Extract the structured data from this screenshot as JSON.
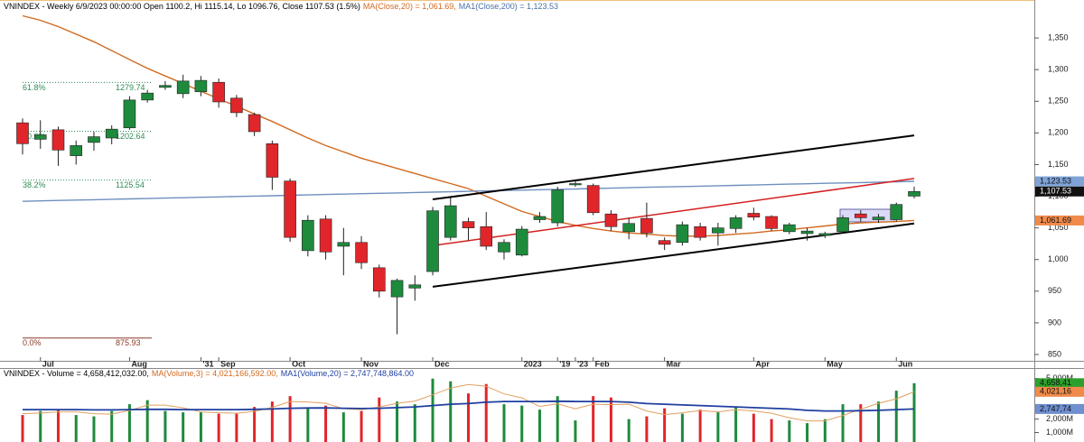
{
  "chart_data": [
    {
      "type": "candlestick",
      "legend": [
        {
          "text": "VNINDEX - Weekly 6/9/2023 00:00:00 Open 1100.2, Hi 1115.14, Lo 1096.76, Close 1107.53 (1.5%)",
          "color": "#000000"
        },
        {
          "text": "MA(Close,20) = 1,061.69,",
          "color": "#d2691e"
        },
        {
          "text": "MA1(Close,200) = 1,123.53",
          "color": "#4a6fa5"
        }
      ],
      "categories": [
        null,
        "Jul",
        null,
        null,
        null,
        null,
        "Aug",
        null,
        null,
        null,
        "'31",
        "Sep",
        null,
        null,
        null,
        "Oct",
        null,
        null,
        null,
        "Nov",
        null,
        null,
        null,
        "Dec",
        null,
        null,
        null,
        null,
        "2023",
        null,
        "'19",
        "'23",
        "Feb",
        null,
        null,
        null,
        "Mar",
        null,
        null,
        null,
        null,
        "Apr",
        null,
        null,
        null,
        "May",
        null,
        null,
        null,
        "Jun",
        null
      ],
      "open": [
        1216,
        1190,
        1205,
        1164,
        1185,
        1192,
        1208,
        1252,
        1272,
        1262,
        1265,
        1280,
        1255,
        1229,
        1183,
        1124,
        1014,
        1064,
        1021,
        1027,
        987,
        941,
        955,
        981,
        1035,
        1060,
        1052,
        1012,
        1007,
        1063,
        1058,
        1118,
        1117,
        1072,
        1044,
        1065,
        1030,
        1027,
        1052,
        1042,
        1049,
        1073,
        1068,
        1044,
        1041,
        1038,
        1044,
        1072,
        1063,
        1063,
        1100.2
      ],
      "high": [
        1223,
        1220,
        1210,
        1188,
        1202,
        1212,
        1258,
        1268,
        1282,
        1292,
        1290,
        1286,
        1260,
        1232,
        1188,
        1128,
        1070,
        1070,
        1050,
        1037,
        992,
        970,
        975,
        1083,
        1098,
        1066,
        1075,
        1032,
        1053,
        1075,
        1115,
        1125,
        1120,
        1078,
        1066,
        1090,
        1035,
        1060,
        1058,
        1058,
        1070,
        1082,
        1070,
        1058,
        1050,
        1044,
        1070,
        1078,
        1072,
        1090,
        1115.14
      ],
      "low": [
        1166,
        1175,
        1148,
        1150,
        1172,
        1182,
        1205,
        1248,
        1268,
        1255,
        1258,
        1240,
        1225,
        1195,
        1110,
        1028,
        1005,
        1000,
        975,
        985,
        940,
        882,
        935,
        975,
        1030,
        1030,
        1015,
        1000,
        1005,
        1058,
        1052,
        1115,
        1070,
        1045,
        1032,
        1035,
        1015,
        1022,
        1030,
        1022,
        1042,
        1062,
        1045,
        1040,
        1030,
        1034,
        1042,
        1060,
        1058,
        1060,
        1096.76
      ],
      "close": [
        1183,
        1197,
        1173,
        1180,
        1194,
        1206,
        1252,
        1263,
        1275,
        1282,
        1283,
        1249,
        1232,
        1202,
        1130,
        1035,
        1062,
        1012,
        1027,
        995,
        950,
        967,
        960,
        1077,
        1085,
        1050,
        1021,
        1027,
        1048,
        1068,
        1110,
        1120,
        1074,
        1052,
        1057,
        1042,
        1024,
        1055,
        1035,
        1050,
        1066,
        1067,
        1049,
        1055,
        1045,
        1041,
        1066,
        1066,
        1067,
        1087,
        1107.53
      ],
      "up_color": "#1e8a3c",
      "down_color": "#e0262a",
      "series": [
        {
          "color": "#d2691e",
          "values": [
            1385,
            1378,
            1368,
            1356,
            1344,
            1330,
            1316,
            1302,
            1290,
            1278,
            1266,
            1254,
            1242,
            1230,
            1218,
            1205,
            1192,
            1180,
            1170,
            1160,
            1152,
            1144,
            1136,
            1128,
            1120,
            1112,
            1100,
            1088,
            1076,
            1068,
            1060,
            1054,
            1049,
            1045,
            1042,
            1040,
            1038,
            1037,
            1037,
            1038,
            1040,
            1042,
            1045,
            1047,
            1050,
            1053,
            1056,
            1058,
            1059,
            1060,
            1061.69
          ]
        },
        {
          "color": "#6f8fbf",
          "values": [
            1092,
            1092.6,
            1093.3,
            1093.9,
            1094.5,
            1095.2,
            1095.8,
            1096.4,
            1097.0,
            1097.7,
            1098.3,
            1098.9,
            1099.6,
            1100.2,
            1100.8,
            1101.5,
            1102.1,
            1102.7,
            1103.3,
            1104.0,
            1104.6,
            1105.2,
            1105.9,
            1106.5,
            1107.1,
            1107.8,
            1108.4,
            1109.0,
            1109.6,
            1110.3,
            1110.9,
            1111.5,
            1112.2,
            1112.8,
            1113.4,
            1114.1,
            1114.7,
            1115.3,
            1115.9,
            1116.6,
            1117.2,
            1117.8,
            1118.5,
            1119.1,
            1119.7,
            1120.4,
            1121.0,
            1121.6,
            1122.2,
            1122.9,
            1123.53
          ]
        }
      ],
      "trendlines": [
        {
          "color": "#000000",
          "x": [
            23,
            50
          ],
          "values": [
            1095,
            1196
          ]
        },
        {
          "color": "#000000",
          "x": [
            23,
            50
          ],
          "values": [
            957,
            1057
          ]
        },
        {
          "color": "#d42020",
          "x": [
            23,
            50
          ],
          "values": [
            1022,
            1128
          ]
        }
      ],
      "fib_levels": [
        {
          "label": "61.8%",
          "value": 1279.74,
          "value_label": "1279.74",
          "color": "#2e8b57"
        },
        {
          "label": "50.0%",
          "value": 1202.64,
          "value_label": "1202.64",
          "color": "#2e8b57"
        },
        {
          "label": "38.2%",
          "value": 1125.54,
          "value_label": "1125.54",
          "color": "#2e8b57"
        },
        {
          "label": "0.0%",
          "value": 875.93,
          "value_label": "875.93",
          "color": "#8b3a2a"
        }
      ],
      "price_tags": [
        {
          "label": "1,123.53",
          "value": 1123.53,
          "color": "#7fa3d6"
        },
        {
          "label": "1,107.53",
          "value": 1107.53,
          "color": "#111111"
        },
        {
          "label": "1,061.69",
          "value": 1061.69,
          "color": "#f08a4b"
        }
      ],
      "ylim": [
        840,
        1410
      ],
      "yticks": [
        850,
        900,
        950,
        {
          "value": 1000,
          "label": "1,000"
        },
        {
          "value": 1050,
          "label": "1,050"
        },
        {
          "value": 1100,
          "label": "1,100"
        },
        {
          "value": 1150,
          "label": "1,150"
        },
        {
          "value": 1200,
          "label": "1,200"
        },
        {
          "value": 1250,
          "label": "1,250"
        },
        {
          "value": 1300,
          "label": "1,300"
        },
        {
          "value": 1350,
          "label": "1,350"
        }
      ]
    },
    {
      "type": "bar",
      "legend": [
        {
          "text": "VNINDEX - Volume = 4,658,412,032.00,",
          "color": "#000000"
        },
        {
          "text": "MA(Volume,3) = 4,021,166,592.00,",
          "color": "#d2691e"
        },
        {
          "text": "MA1(Volume,20) = 2,747,748,864.00",
          "color": "#1f3fa0"
        }
      ],
      "values": [
        2300000000,
        2600000000,
        2700000000,
        2300000000,
        2200000000,
        2600000000,
        3100000000,
        3400000000,
        2600000000,
        2500000000,
        2500000000,
        2400000000,
        2400000000,
        2900000000,
        3300000000,
        3700000000,
        2800000000,
        3000000000,
        2500000000,
        2600000000,
        3600000000,
        3300000000,
        3100000000,
        5000000000,
        4800000000,
        3900000000,
        4600000000,
        3100000000,
        3000000000,
        2700000000,
        3700000000,
        1900000000,
        3700000000,
        3600000000,
        2000000000,
        2200000000,
        2800000000,
        2400000000,
        2700000000,
        2500000000,
        2900000000,
        2400000000,
        2000000000,
        1900000000,
        1700000000,
        1992000000,
        3100000000,
        3100000000,
        3300000000,
        4105000000,
        4658412032
      ],
      "series": [
        {
          "color": "#e0a060",
          "values": [
            2400000000,
            2450000000,
            2533000000,
            2533000000,
            2400000000,
            2367000000,
            2633000000,
            3033000000,
            3033000000,
            2833000000,
            2533000000,
            2467000000,
            2433000000,
            2567000000,
            2867000000,
            3300000000,
            3267000000,
            3167000000,
            2767000000,
            2700000000,
            2900000000,
            3167000000,
            3333000000,
            3800000000,
            4300000000,
            4567000000,
            4433000000,
            3867000000,
            3567000000,
            2933000000,
            3133000000,
            2767000000,
            3100000000,
            3067000000,
            3100000000,
            2600000000,
            2333000000,
            2467000000,
            2633000000,
            2533000000,
            2700000000,
            2600000000,
            2433000000,
            2100000000,
            1867000000,
            1864000000,
            2264000000,
            2731000000,
            3167000000,
            3502000000,
            4021166592
          ]
        },
        {
          "color": "#1f3fa0",
          "values": [
            2700000000,
            2700000000,
            2700000000,
            2700000000,
            2680000000,
            2680000000,
            2700000000,
            2720000000,
            2720000000,
            2700000000,
            2700000000,
            2700000000,
            2700000000,
            2720000000,
            2750000000,
            2800000000,
            2820000000,
            2830000000,
            2800000000,
            2780000000,
            2800000000,
            2850000000,
            2900000000,
            3000000000,
            3100000000,
            3150000000,
            3250000000,
            3300000000,
            3300000000,
            3300000000,
            3320000000,
            3300000000,
            3300000000,
            3300000000,
            3250000000,
            3150000000,
            3100000000,
            3050000000,
            3000000000,
            2950000000,
            2900000000,
            2850000000,
            2800000000,
            2750000000,
            2650000000,
            2600000000,
            2600000000,
            2620000000,
            2650000000,
            2700000000,
            2747748864
          ]
        }
      ],
      "value_tags": [
        {
          "label": "4,658,41",
          "value": 4658412032,
          "color": "#2ca02c"
        },
        {
          "label": "4,021,16",
          "value": 4021166592,
          "color": "#f08a4b"
        },
        {
          "label": "2,747,74",
          "value": 2747748864,
          "color": "#6f8fd0"
        }
      ],
      "ylim": [
        300000000,
        5650000000
      ],
      "yticks": [
        {
          "value": 1000000000,
          "label": "1,000M"
        },
        {
          "value": 2000000000,
          "label": "2,000M"
        },
        {
          "value": 5000000000,
          "label": "5,000M"
        }
      ]
    }
  ]
}
